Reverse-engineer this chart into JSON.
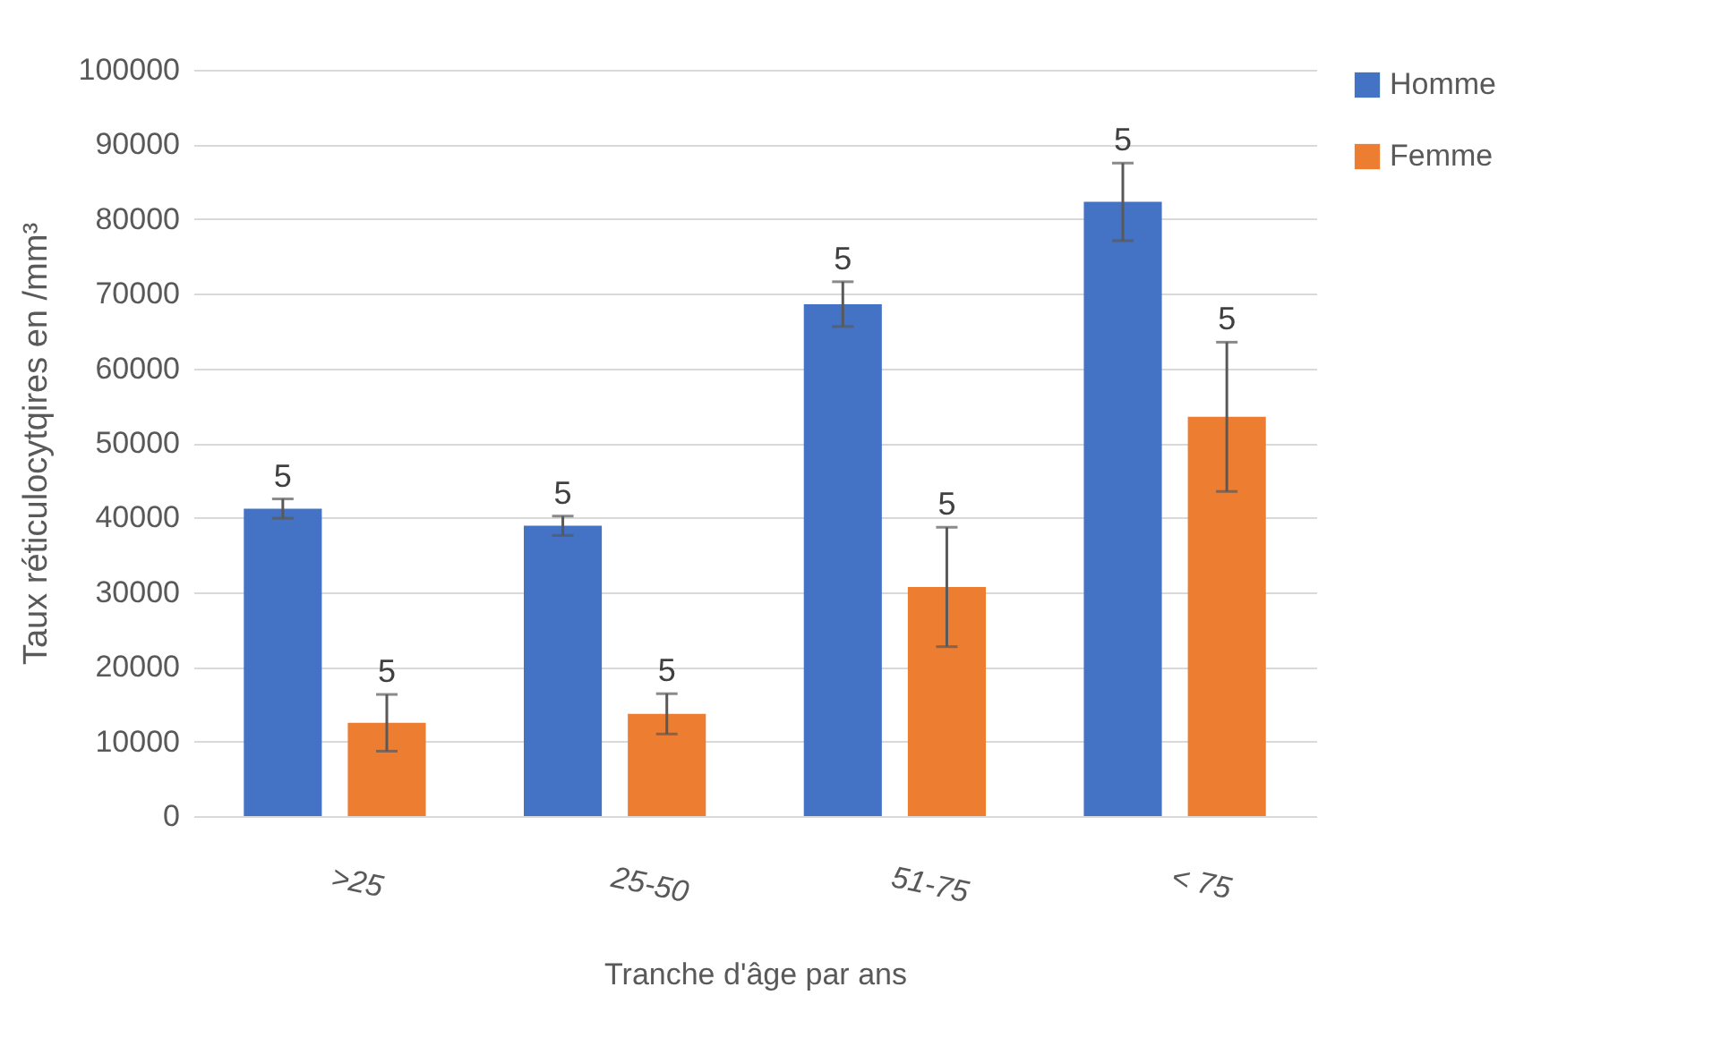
{
  "chart_data": {
    "type": "bar",
    "xlabel": "Tranche d'âge par ans",
    "ylabel": "Taux réticulocytqires en /mm³",
    "categories": [
      ">25",
      "25-50",
      "51-75",
      "< 75"
    ],
    "series": [
      {
        "name": "Homme",
        "color": "#4472c4",
        "values": [
          41200,
          38900,
          68600,
          82300
        ],
        "errors": [
          1300,
          1300,
          3000,
          5200
        ]
      },
      {
        "name": "Femme",
        "color": "#ed7d31",
        "values": [
          12500,
          13700,
          30700,
          53500
        ],
        "errors": [
          3800,
          2700,
          8000,
          10000
        ]
      }
    ],
    "annotations": [
      "5",
      "5",
      "5",
      "5",
      "5",
      "5",
      "5",
      "5"
    ],
    "ylim": [
      0,
      100000
    ],
    "yticks": [
      0,
      10000,
      20000,
      30000,
      40000,
      50000,
      60000,
      70000,
      80000,
      90000,
      100000
    ],
    "grid": "y",
    "legend": "right"
  }
}
